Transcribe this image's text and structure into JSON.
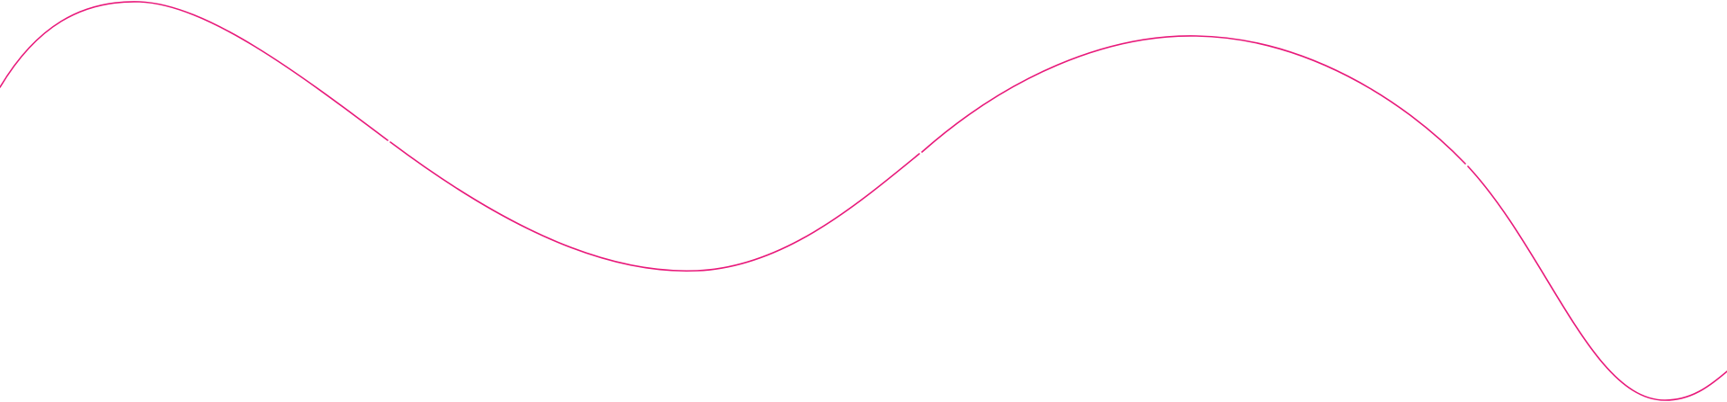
{
  "decoration": {
    "shape": "wavy-line",
    "segments": 4,
    "stroke_color": "#E8197A",
    "background_color": "#FFFFFF"
  }
}
